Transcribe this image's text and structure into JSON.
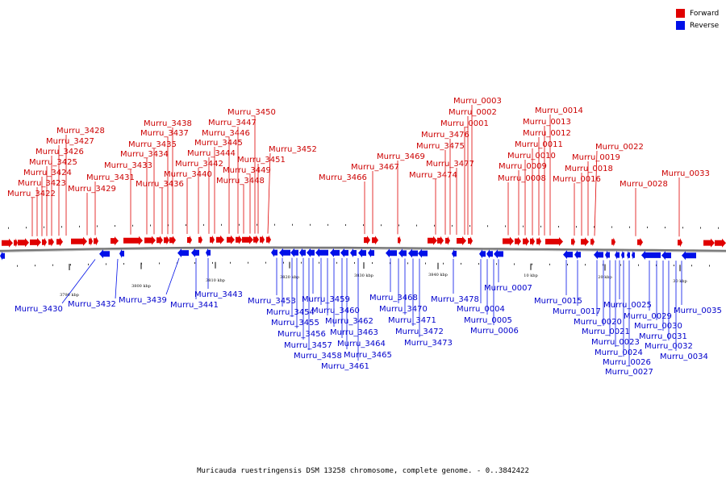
{
  "title": "Muricauda ruestringensis DSM 13258 chromosome, complete genome. - 0..3842422",
  "colors": {
    "forward": "#e00000",
    "reverse": "#0010e8",
    "backbone": "#777777"
  },
  "legend": {
    "forward": "Forward",
    "reverse": "Reverse"
  },
  "ticks": [
    "3790 kbp",
    "3800 kbp",
    "3810 kbp",
    "3820 kbp",
    "3830 kbp",
    "3840 kbp",
    "10 kbp",
    "20 kbp",
    "30 kbp"
  ],
  "forward_genes": [
    "Murru_3422",
    "Murru_3423",
    "Murru_3424",
    "Murru_3425",
    "Murru_3426",
    "Murru_3427",
    "Murru_3428",
    "Murru_3429",
    "Murru_3431",
    "Murru_3433",
    "Murru_3434",
    "Murru_3435",
    "Murru_3436",
    "Murru_3437",
    "Murru_3438",
    "Murru_3440",
    "Murru_3442",
    "Murru_3444",
    "Murru_3445",
    "Murru_3446",
    "Murru_3447",
    "Murru_3448",
    "Murru_3449",
    "Murru_3450",
    "Murru_3451",
    "Murru_3452",
    "Murru_3466",
    "Murru_3467",
    "Murru_3469",
    "Murru_3474",
    "Murru_3475",
    "Murru_3476",
    "Murru_3477",
    "Murru_0001",
    "Murru_0002",
    "Murru_0003",
    "Murru_0008",
    "Murru_0009",
    "Murru_0010",
    "Murru_0011",
    "Murru_0012",
    "Murru_0013",
    "Murru_0014",
    "Murru_0016",
    "Murru_0018",
    "Murru_0019",
    "Murru_0022",
    "Murru_0028",
    "Murru_0033"
  ],
  "reverse_genes": [
    "Murru_3430",
    "Murru_3432",
    "Murru_3439",
    "Murru_3441",
    "Murru_3443",
    "Murru_3453",
    "Murru_3454",
    "Murru_3455",
    "Murru_3456",
    "Murru_3457",
    "Murru_3458",
    "Murru_3459",
    "Murru_3460",
    "Murru_3461",
    "Murru_3462",
    "Murru_3463",
    "Murru_3464",
    "Murru_3465",
    "Murru_3468",
    "Murru_3470",
    "Murru_3471",
    "Murru_3472",
    "Murru_3473",
    "Murru_3478",
    "Murru_0004",
    "Murru_0005",
    "Murru_0006",
    "Murru_0007",
    "Murru_0015",
    "Murru_0017",
    "Murru_0020",
    "Murru_0021",
    "Murru_0023",
    "Murru_0024",
    "Murru_0025",
    "Murru_0026",
    "Murru_0027",
    "Murru_0029",
    "Murru_0030",
    "Murru_0031",
    "Murru_0032",
    "Murru_0034",
    "Murru_0035"
  ]
}
